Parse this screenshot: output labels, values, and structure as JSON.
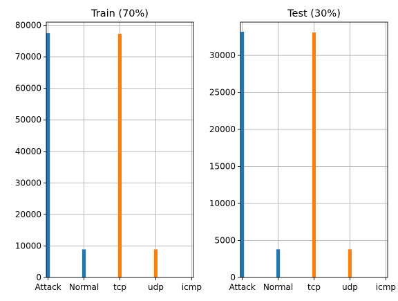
{
  "chart_data": [
    {
      "type": "bar",
      "title": "Train (70%)",
      "xlabel": "",
      "ylabel": "",
      "categories": [
        "Attack",
        "Normal",
        "tcp",
        "udp",
        "icmp"
      ],
      "ylim": [
        0,
        81000
      ],
      "yticks": [
        0,
        10000,
        20000,
        30000,
        40000,
        50000,
        60000,
        70000,
        80000
      ],
      "grid": true,
      "series": [
        {
          "color": "#1f77b4",
          "values": [
            77500,
            8900,
            0,
            0,
            0
          ]
        },
        {
          "color": "#ff7f0e",
          "values": [
            0,
            0,
            77300,
            8900,
            0
          ]
        }
      ]
    },
    {
      "type": "bar",
      "title": "Test (30%)",
      "xlabel": "",
      "ylabel": "",
      "categories": [
        "Attack",
        "Normal",
        "tcp",
        "udp",
        "icmp"
      ],
      "ylim": [
        0,
        34500
      ],
      "yticks": [
        0,
        5000,
        10000,
        15000,
        20000,
        25000,
        30000
      ],
      "grid": true,
      "series": [
        {
          "color": "#1f77b4",
          "values": [
            33200,
            3800,
            0,
            0,
            0
          ]
        },
        {
          "color": "#ff7f0e",
          "values": [
            0,
            0,
            33100,
            3800,
            0
          ]
        }
      ]
    }
  ]
}
